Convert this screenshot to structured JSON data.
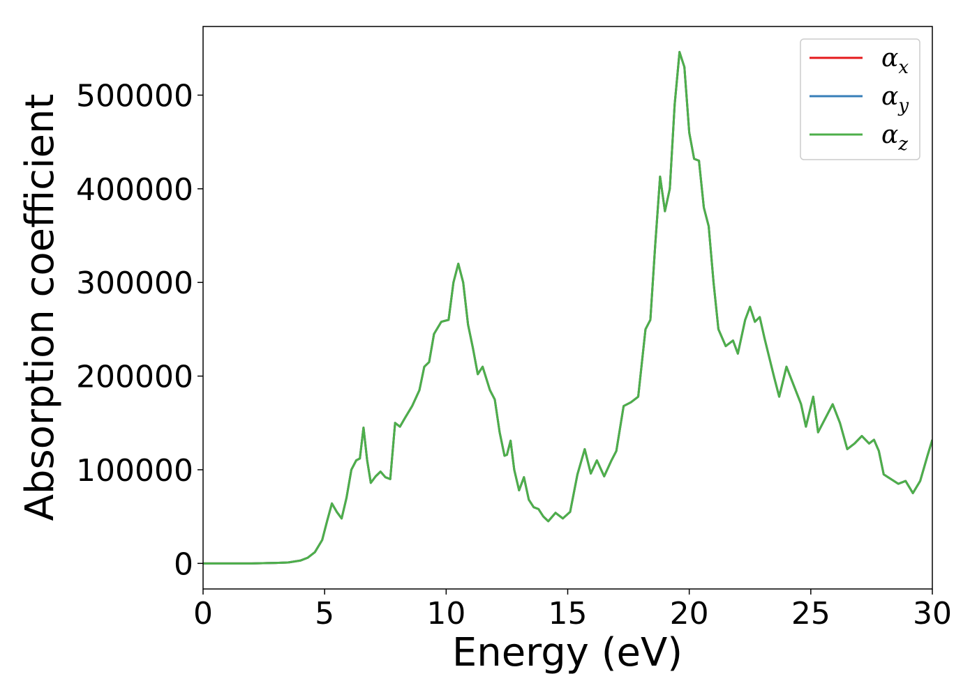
{
  "chart_data": {
    "type": "line",
    "xlabel": "Energy (eV)",
    "ylabel": "Absorption coefficient",
    "x": [
      0,
      1,
      2,
      3,
      3.5,
      4,
      4.3,
      4.6,
      4.9,
      5.1,
      5.3,
      5.5,
      5.7,
      5.9,
      6.1,
      6.3,
      6.45,
      6.6,
      6.75,
      6.9,
      7.1,
      7.3,
      7.5,
      7.7,
      7.9,
      8.1,
      8.3,
      8.6,
      8.9,
      9.1,
      9.3,
      9.5,
      9.8,
      10.1,
      10.3,
      10.5,
      10.7,
      10.9,
      11.1,
      11.3,
      11.5,
      11.8,
      12.0,
      12.2,
      12.4,
      12.5,
      12.65,
      12.8,
      13.0,
      13.2,
      13.4,
      13.6,
      13.8,
      14.0,
      14.2,
      14.5,
      14.8,
      15.1,
      15.4,
      15.7,
      15.95,
      16.2,
      16.5,
      16.8,
      17.0,
      17.3,
      17.6,
      17.9,
      18.2,
      18.4,
      18.6,
      18.8,
      19.0,
      19.2,
      19.4,
      19.6,
      19.8,
      20.0,
      20.2,
      20.4,
      20.6,
      20.8,
      21.0,
      21.2,
      21.5,
      21.8,
      22.0,
      22.3,
      22.5,
      22.7,
      22.9,
      23.1,
      23.5,
      23.7,
      24.0,
      24.3,
      24.6,
      24.8,
      25.1,
      25.3,
      25.6,
      25.9,
      26.2,
      26.5,
      26.8,
      27.1,
      27.4,
      27.6,
      27.8,
      28.0,
      28.3,
      28.6,
      28.9,
      29.2,
      29.5,
      29.8,
      30
    ],
    "series": [
      {
        "name": "α_x",
        "color": "#e41a1c",
        "values": [
          0,
          0,
          0,
          500,
          1000,
          3000,
          6000,
          12000,
          25000,
          45000,
          64000,
          55000,
          48000,
          70000,
          100000,
          110000,
          112000,
          145000,
          110000,
          86000,
          93000,
          98000,
          92000,
          90000,
          150000,
          146000,
          155000,
          168000,
          185000,
          210000,
          215000,
          245000,
          258000,
          260000,
          300000,
          320000,
          300000,
          255000,
          230000,
          202000,
          210000,
          185000,
          175000,
          140000,
          115000,
          116000,
          131000,
          100000,
          78000,
          92000,
          68000,
          60000,
          58000,
          50000,
          45000,
          54000,
          48000,
          55000,
          95000,
          122000,
          96000,
          110000,
          93000,
          110000,
          120000,
          168000,
          172000,
          178000,
          250000,
          260000,
          340000,
          413000,
          376000,
          400000,
          490000,
          546000,
          530000,
          460000,
          432000,
          430000,
          380000,
          360000,
          300000,
          250000,
          232000,
          238000,
          224000,
          260000,
          274000,
          258000,
          263000,
          240000,
          198000,
          178000,
          210000,
          190000,
          170000,
          146000,
          178000,
          140000,
          155000,
          170000,
          150000,
          122000,
          128000,
          136000,
          128000,
          132000,
          120000,
          95000,
          90000,
          85000,
          88000,
          75000,
          88000,
          115000,
          132000
        ]
      },
      {
        "name": "α_y",
        "color": "#377eb8",
        "values": [
          0,
          0,
          0,
          500,
          1000,
          3000,
          6000,
          12000,
          25000,
          45000,
          64000,
          55000,
          48000,
          70000,
          100000,
          110000,
          112000,
          145000,
          110000,
          86000,
          93000,
          98000,
          92000,
          90000,
          150000,
          146000,
          155000,
          168000,
          185000,
          210000,
          215000,
          245000,
          258000,
          260000,
          300000,
          320000,
          300000,
          255000,
          230000,
          202000,
          210000,
          185000,
          175000,
          140000,
          115000,
          116000,
          131000,
          100000,
          78000,
          92000,
          68000,
          60000,
          58000,
          50000,
          45000,
          54000,
          48000,
          55000,
          95000,
          122000,
          96000,
          110000,
          93000,
          110000,
          120000,
          168000,
          172000,
          178000,
          250000,
          260000,
          340000,
          413000,
          376000,
          400000,
          490000,
          546000,
          530000,
          460000,
          432000,
          430000,
          380000,
          360000,
          300000,
          250000,
          232000,
          238000,
          224000,
          260000,
          274000,
          258000,
          263000,
          240000,
          198000,
          178000,
          210000,
          190000,
          170000,
          146000,
          178000,
          140000,
          155000,
          170000,
          150000,
          122000,
          128000,
          136000,
          128000,
          132000,
          120000,
          95000,
          90000,
          85000,
          88000,
          75000,
          88000,
          115000,
          132000
        ]
      },
      {
        "name": "α_z",
        "color": "#4daf4a",
        "values": [
          0,
          0,
          0,
          500,
          1000,
          3000,
          6000,
          12000,
          25000,
          45000,
          64000,
          55000,
          48000,
          70000,
          100000,
          110000,
          112000,
          145000,
          110000,
          86000,
          93000,
          98000,
          92000,
          90000,
          150000,
          146000,
          155000,
          168000,
          185000,
          210000,
          215000,
          245000,
          258000,
          260000,
          300000,
          320000,
          300000,
          255000,
          230000,
          202000,
          210000,
          185000,
          175000,
          140000,
          115000,
          116000,
          131000,
          100000,
          78000,
          92000,
          68000,
          60000,
          58000,
          50000,
          45000,
          54000,
          48000,
          55000,
          95000,
          122000,
          96000,
          110000,
          93000,
          110000,
          120000,
          168000,
          172000,
          178000,
          250000,
          260000,
          340000,
          413000,
          376000,
          400000,
          490000,
          546000,
          530000,
          460000,
          432000,
          430000,
          380000,
          360000,
          300000,
          250000,
          232000,
          238000,
          224000,
          260000,
          274000,
          258000,
          263000,
          240000,
          198000,
          178000,
          210000,
          190000,
          170000,
          146000,
          178000,
          140000,
          155000,
          170000,
          150000,
          122000,
          128000,
          136000,
          128000,
          132000,
          120000,
          95000,
          90000,
          85000,
          88000,
          75000,
          88000,
          115000,
          132000
        ]
      }
    ],
    "xlim": [
      0,
      30
    ],
    "xticks": [
      0,
      5,
      10,
      15,
      20,
      25,
      30
    ],
    "ylim": [
      -27300,
      573300
    ],
    "yticks": [
      0,
      100000,
      200000,
      300000,
      400000,
      500000
    ],
    "grid": false,
    "legend": "upper right"
  }
}
